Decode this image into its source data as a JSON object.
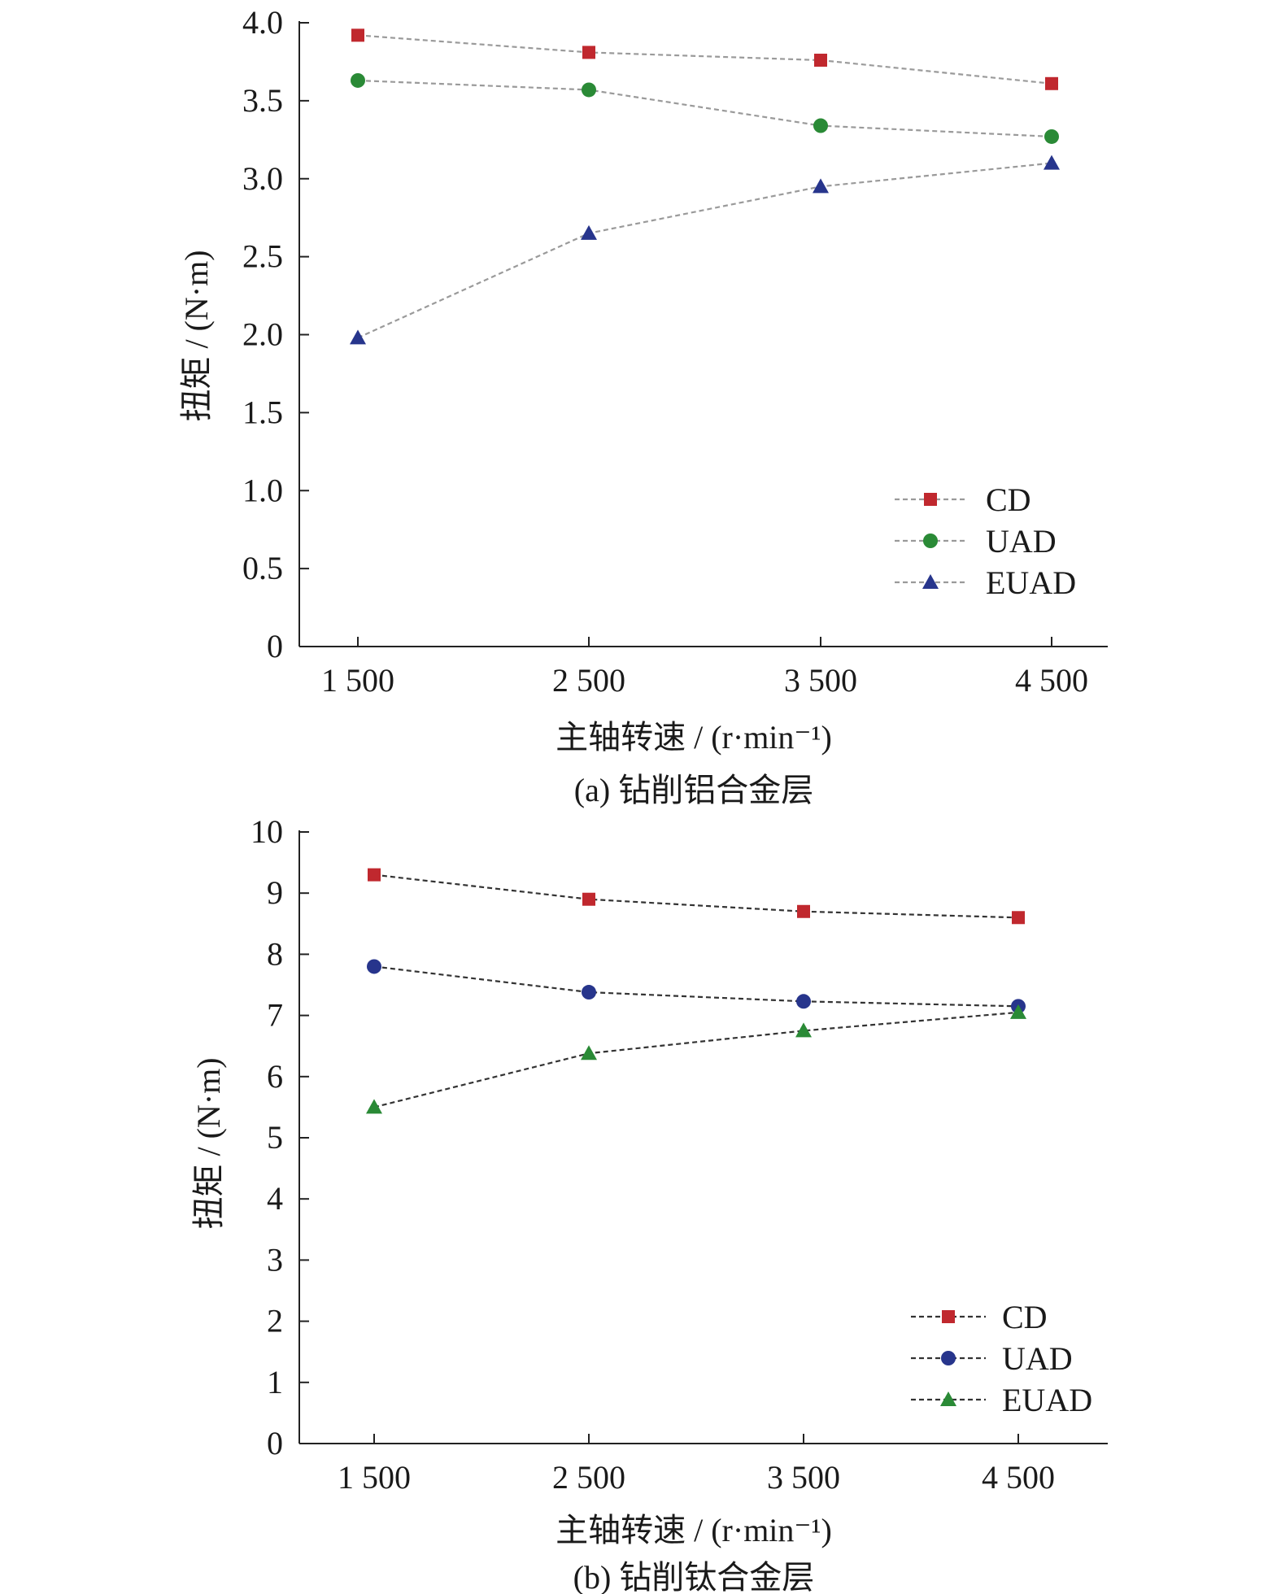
{
  "chart_data": [
    {
      "type": "line",
      "caption": "(a) 钻削铝合金层",
      "xlabel": "主轴转速 / (r·min⁻¹)",
      "ylabel": "扭矩 / (N·m)",
      "categories": [
        "1 500",
        "2 500",
        "3 500",
        "4 500"
      ],
      "y_ticks": [
        "0",
        "0.5",
        "1.0",
        "1.5",
        "2.0",
        "2.5",
        "3.0",
        "3.5",
        "4.0"
      ],
      "ylim": [
        0,
        4.0
      ],
      "line_style": "dashed",
      "line_color": "#9a9a9a",
      "legend_position": "lower-right",
      "series": [
        {
          "name": "CD",
          "marker": "square",
          "color": "#c0282e",
          "values": [
            3.92,
            3.81,
            3.76,
            3.61
          ]
        },
        {
          "name": "UAD",
          "marker": "circle",
          "color": "#2a8a36",
          "values": [
            3.63,
            3.57,
            3.34,
            3.27
          ]
        },
        {
          "name": "EUAD",
          "marker": "triangle",
          "color": "#27358c",
          "values": [
            1.98,
            2.65,
            2.95,
            3.1
          ]
        }
      ]
    },
    {
      "type": "line",
      "caption": "(b) 钻削钛合金层",
      "xlabel": "主轴转速 / (r·min⁻¹)",
      "ylabel": "扭矩 / (N·m)",
      "categories": [
        "1 500",
        "2 500",
        "3 500",
        "4 500"
      ],
      "y_ticks": [
        "0",
        "1",
        "2",
        "3",
        "4",
        "5",
        "6",
        "7",
        "8",
        "9",
        "10"
      ],
      "ylim": [
        0,
        10
      ],
      "line_style": "dashed",
      "line_color": "#333333",
      "legend_position": "lower-right",
      "series": [
        {
          "name": "CD",
          "marker": "square",
          "color": "#c0282e",
          "values": [
            9.3,
            8.9,
            8.7,
            8.6
          ]
        },
        {
          "name": "UAD",
          "marker": "circle",
          "color": "#27358c",
          "values": [
            7.8,
            7.38,
            7.23,
            7.15
          ]
        },
        {
          "name": "EUAD",
          "marker": "triangle",
          "color": "#2a8a36",
          "values": [
            5.5,
            6.38,
            6.75,
            7.05
          ]
        }
      ]
    }
  ]
}
